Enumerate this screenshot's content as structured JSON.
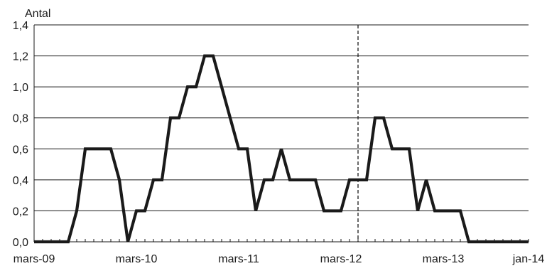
{
  "chart_data": {
    "type": "line",
    "title": "",
    "xlabel": "",
    "ylabel": "Antal",
    "ylim": [
      0,
      1.4
    ],
    "y_ticks": [
      "0,0",
      "0,2",
      "0,4",
      "0,6",
      "0,8",
      "1,0",
      "1,2",
      "1,4"
    ],
    "x_tick_labels": [
      "mars-09",
      "mars-10",
      "mars-11",
      "mars-12",
      "mars-13",
      "jan-14"
    ],
    "grid": "horizontal",
    "legend": "none",
    "line_color": "#1a1a1a",
    "reference_line_x": "2012-05",
    "series": [
      {
        "x": [
          "2009-03",
          "2009-04",
          "2009-05",
          "2009-06",
          "2009-07",
          "2009-08",
          "2009-09",
          "2009-10",
          "2009-11",
          "2009-12",
          "2010-01",
          "2010-02",
          "2010-03",
          "2010-04",
          "2010-05",
          "2010-06",
          "2010-07",
          "2010-08",
          "2010-09",
          "2010-10",
          "2010-11",
          "2010-12",
          "2011-01",
          "2011-02",
          "2011-03",
          "2011-04",
          "2011-05",
          "2011-06",
          "2011-07",
          "2011-08",
          "2011-09",
          "2011-10",
          "2011-11",
          "2011-12",
          "2012-01",
          "2012-02",
          "2012-03",
          "2012-04",
          "2012-05",
          "2012-06",
          "2012-07",
          "2012-08",
          "2012-09",
          "2012-10",
          "2012-11",
          "2012-12",
          "2013-01",
          "2013-02",
          "2013-03",
          "2013-04",
          "2013-05",
          "2013-06",
          "2013-07",
          "2013-08",
          "2013-09",
          "2013-10",
          "2013-11",
          "2013-12",
          "2014-01"
        ],
        "y": [
          0.0,
          0.0,
          0.0,
          0.0,
          0.0,
          0.2,
          0.6,
          0.6,
          0.6,
          0.6,
          0.4,
          0.0,
          0.2,
          0.2,
          0.4,
          0.4,
          0.8,
          0.8,
          1.0,
          1.0,
          1.2,
          1.2,
          1.0,
          0.8,
          0.6,
          0.6,
          0.2,
          0.4,
          0.4,
          0.6,
          0.4,
          0.4,
          0.4,
          0.4,
          0.2,
          0.2,
          0.2,
          0.4,
          0.4,
          0.4,
          0.8,
          0.8,
          0.6,
          0.6,
          0.6,
          0.2,
          0.4,
          0.2,
          0.2,
          0.2,
          0.2,
          0.0,
          0.0,
          0.0,
          0.0,
          0.0,
          0.0,
          0.0,
          0.0
        ]
      }
    ]
  }
}
